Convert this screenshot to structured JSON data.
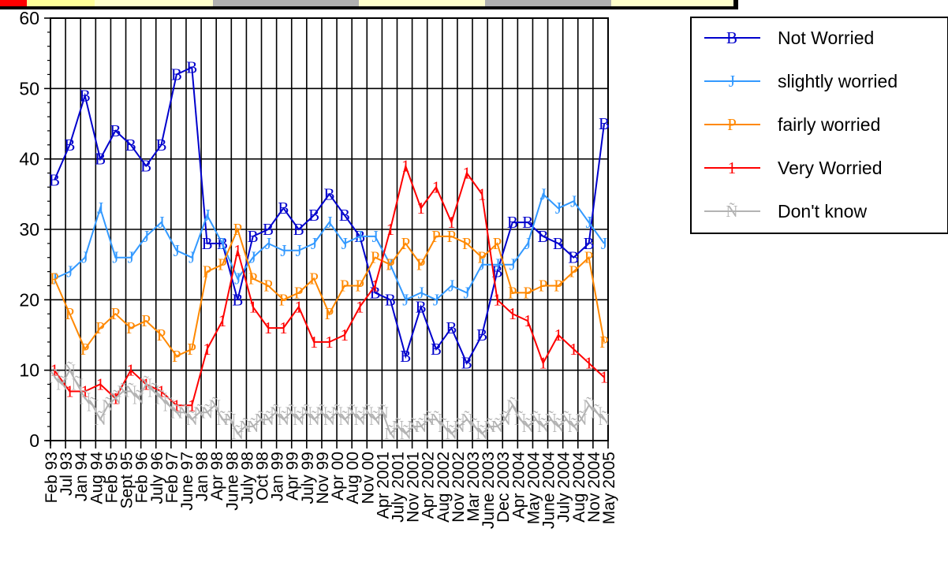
{
  "chart_data": {
    "type": "line",
    "title": "",
    "xlabel": "",
    "ylabel": "",
    "ylim": [
      0,
      60
    ],
    "yticks": [
      "0",
      "10",
      "20",
      "30",
      "40",
      "50",
      "60"
    ],
    "grid": true,
    "legend_position": "top-right",
    "categories": [
      "Feb 93",
      "Jul 93",
      "Jan 94",
      "Aug 94",
      "Feb 95",
      "Sept 95",
      "Feb 96",
      "July 96",
      "Feb 97",
      "June 97",
      "Jan 98",
      "Apr 98",
      "June 98",
      "July 98",
      "Oct 98",
      "Jan 99",
      "Apr 99",
      "July 99",
      "Nov 99",
      "Apr 00",
      "Aug 00",
      "Nov 00",
      "Apr 2001",
      "July 2001",
      "Nov 2001",
      "Apr 2002",
      "Aug 2002",
      "Nov 2002",
      "Mar 2003",
      "June 2003",
      "Dec 2003",
      "Apr 2004",
      "May 2004",
      "June 2004",
      "July 2004",
      "Aug 2004",
      "Nov 2004",
      "May 2005"
    ],
    "series": [
      {
        "name": "Not Worried",
        "marker": "B",
        "color": "#0000cc",
        "points": [
          [
            0,
            37
          ],
          [
            1,
            42
          ],
          [
            2,
            49
          ],
          [
            3,
            40
          ],
          [
            4,
            44
          ],
          [
            5,
            42
          ],
          [
            6,
            39
          ],
          [
            7,
            42
          ],
          [
            8,
            52
          ],
          [
            9,
            53
          ],
          [
            10,
            28
          ],
          [
            11,
            28
          ],
          [
            12,
            20
          ],
          [
            13,
            29
          ],
          [
            14,
            30
          ],
          [
            15,
            33
          ],
          [
            16,
            30
          ],
          [
            17,
            32
          ],
          [
            18,
            35
          ],
          [
            19,
            32
          ],
          [
            20,
            29
          ],
          [
            21,
            21
          ],
          [
            22,
            20
          ],
          [
            23,
            12
          ],
          [
            24,
            19
          ],
          [
            25,
            13
          ],
          [
            26,
            16
          ],
          [
            27,
            11
          ],
          [
            28,
            15
          ],
          [
            29,
            24
          ],
          [
            30,
            31
          ],
          [
            31,
            31
          ],
          [
            32,
            29
          ],
          [
            33,
            28
          ],
          [
            34,
            26
          ],
          [
            35,
            28
          ],
          [
            36,
            45
          ]
        ]
      },
      {
        "name": "slightly worried",
        "marker": "J",
        "color": "#3399ff",
        "points": [
          [
            0,
            23
          ],
          [
            1,
            24
          ],
          [
            2,
            26
          ],
          [
            3,
            33
          ],
          [
            4,
            26
          ],
          [
            5,
            26
          ],
          [
            6,
            29
          ],
          [
            7,
            31
          ],
          [
            8,
            27
          ],
          [
            9,
            26
          ],
          [
            10,
            32
          ],
          [
            11,
            28
          ],
          [
            12,
            23
          ],
          [
            13,
            26
          ],
          [
            14,
            28
          ],
          [
            15,
            27
          ],
          [
            16,
            27
          ],
          [
            17,
            28
          ],
          [
            18,
            31
          ],
          [
            19,
            28
          ],
          [
            20,
            29
          ],
          [
            21,
            29
          ],
          [
            22,
            25
          ],
          [
            23,
            20
          ],
          [
            24,
            21
          ],
          [
            25,
            20
          ],
          [
            26,
            22
          ],
          [
            27,
            21
          ],
          [
            28,
            25
          ],
          [
            29,
            25
          ],
          [
            30,
            25
          ],
          [
            31,
            28
          ],
          [
            32,
            35
          ],
          [
            33,
            33
          ],
          [
            34,
            34
          ],
          [
            35,
            31
          ],
          [
            36,
            28
          ]
        ]
      },
      {
        "name": "fairly worried",
        "marker": "P",
        "color": "#ff8800",
        "points": [
          [
            0,
            23
          ],
          [
            1,
            18
          ],
          [
            2,
            13
          ],
          [
            3,
            16
          ],
          [
            4,
            18
          ],
          [
            5,
            16
          ],
          [
            6,
            17
          ],
          [
            7,
            15
          ],
          [
            8,
            12
          ],
          [
            9,
            13
          ],
          [
            10,
            24
          ],
          [
            11,
            25
          ],
          [
            12,
            30
          ],
          [
            13,
            23
          ],
          [
            14,
            22
          ],
          [
            15,
            20
          ],
          [
            16,
            21
          ],
          [
            17,
            23
          ],
          [
            18,
            18
          ],
          [
            19,
            22
          ],
          [
            20,
            22
          ],
          [
            21,
            26
          ],
          [
            22,
            25
          ],
          [
            23,
            28
          ],
          [
            24,
            25
          ],
          [
            25,
            29
          ],
          [
            26,
            29
          ],
          [
            27,
            28
          ],
          [
            28,
            26
          ],
          [
            29,
            28
          ],
          [
            30,
            21
          ],
          [
            31,
            21
          ],
          [
            32,
            22
          ],
          [
            33,
            22
          ],
          [
            34,
            24
          ],
          [
            35,
            26
          ],
          [
            36,
            14
          ]
        ]
      },
      {
        "name": "Very Worried",
        "marker": "1",
        "color": "#ff0000",
        "points": [
          [
            0,
            10
          ],
          [
            1,
            7
          ],
          [
            2,
            7
          ],
          [
            3,
            8
          ],
          [
            4,
            6
          ],
          [
            5,
            10
          ],
          [
            6,
            8
          ],
          [
            7,
            7
          ],
          [
            8,
            5
          ],
          [
            9,
            5
          ],
          [
            10,
            13
          ],
          [
            11,
            17
          ],
          [
            12,
            27
          ],
          [
            13,
            19
          ],
          [
            14,
            16
          ],
          [
            15,
            16
          ],
          [
            16,
            19
          ],
          [
            17,
            14
          ],
          [
            18,
            14
          ],
          [
            19,
            15
          ],
          [
            20,
            19
          ],
          [
            21,
            22
          ],
          [
            22,
            30
          ],
          [
            23,
            39
          ],
          [
            24,
            33
          ],
          [
            25,
            36
          ],
          [
            26,
            31
          ],
          [
            27,
            38
          ],
          [
            28,
            35
          ],
          [
            29,
            20
          ],
          [
            30,
            18
          ],
          [
            31,
            17
          ],
          [
            32,
            11
          ],
          [
            33,
            15
          ],
          [
            34,
            13
          ],
          [
            35,
            11
          ],
          [
            36,
            9
          ]
        ]
      },
      {
        "name": "Don't know",
        "marker": "Ñ",
        "color": "#b3b3b3",
        "points": [
          [
            0,
            9
          ],
          [
            0.5,
            8
          ],
          [
            1,
            10
          ],
          [
            1.5,
            8
          ],
          [
            2,
            6
          ],
          [
            2.5,
            5
          ],
          [
            3,
            3
          ],
          [
            3.5,
            5
          ],
          [
            4,
            6
          ],
          [
            4.5,
            7
          ],
          [
            5,
            7
          ],
          [
            5.5,
            6
          ],
          [
            6,
            8
          ],
          [
            6.5,
            7
          ],
          [
            7,
            6
          ],
          [
            7.5,
            5
          ],
          [
            8,
            4
          ],
          [
            8.5,
            4
          ],
          [
            9,
            3
          ],
          [
            9.5,
            4
          ],
          [
            10,
            4
          ],
          [
            10.5,
            5
          ],
          [
            11,
            3
          ],
          [
            11.5,
            3
          ],
          [
            12,
            1
          ],
          [
            12.5,
            2
          ],
          [
            13,
            2
          ],
          [
            13.5,
            3
          ],
          [
            14,
            3
          ],
          [
            14.5,
            4
          ],
          [
            15,
            3
          ],
          [
            15.5,
            4
          ],
          [
            16,
            3
          ],
          [
            16.5,
            4
          ],
          [
            17,
            3
          ],
          [
            17.5,
            4
          ],
          [
            18,
            3
          ],
          [
            18.5,
            4
          ],
          [
            19,
            3
          ],
          [
            19.5,
            4
          ],
          [
            20,
            3
          ],
          [
            20.5,
            4
          ],
          [
            21,
            3
          ],
          [
            21.5,
            4
          ],
          [
            22,
            1
          ],
          [
            22.5,
            2
          ],
          [
            23,
            1
          ],
          [
            23.5,
            2
          ],
          [
            24,
            2
          ],
          [
            24.5,
            3
          ],
          [
            25,
            3
          ],
          [
            25.5,
            2
          ],
          [
            26,
            1
          ],
          [
            26.5,
            2
          ],
          [
            27,
            3
          ],
          [
            27.5,
            2
          ],
          [
            28,
            1
          ],
          [
            28.5,
            2
          ],
          [
            29,
            2
          ],
          [
            29.5,
            3
          ],
          [
            30,
            5
          ],
          [
            30.5,
            3
          ],
          [
            31,
            2
          ],
          [
            31.5,
            3
          ],
          [
            32,
            2
          ],
          [
            32.5,
            3
          ],
          [
            33,
            2
          ],
          [
            33.5,
            3
          ],
          [
            34,
            2
          ],
          [
            34.5,
            3
          ],
          [
            35,
            5
          ],
          [
            35.5,
            4
          ],
          [
            36,
            3
          ]
        ]
      }
    ]
  }
}
